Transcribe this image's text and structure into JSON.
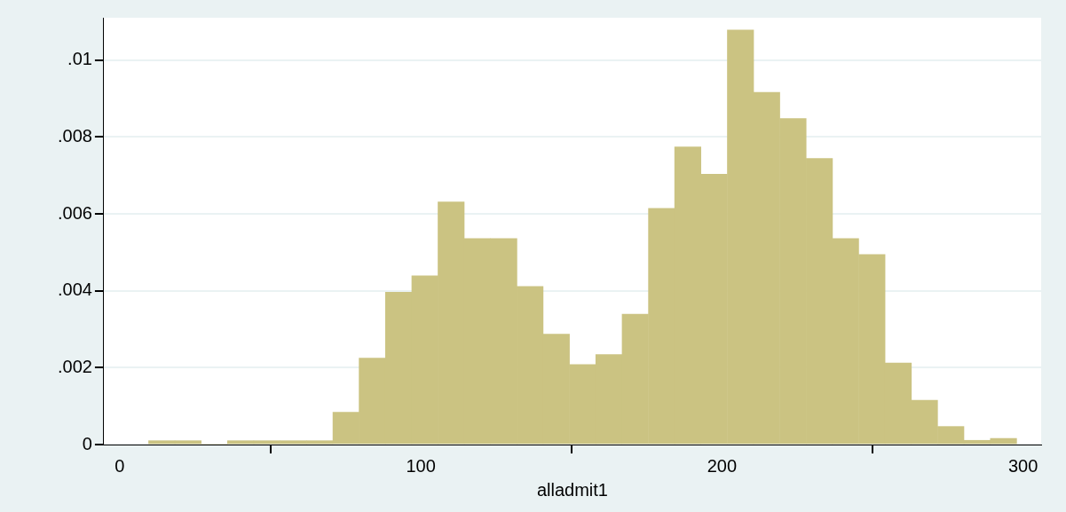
{
  "chart_data": {
    "type": "histogram",
    "xlabel": "alladmit1",
    "bins": [
      9.6,
      18.3,
      27.1,
      35.8,
      44.5,
      53.3,
      62.0,
      70.8,
      79.5,
      88.2,
      97.0,
      105.7,
      114.4,
      123.2,
      131.9,
      140.6,
      149.4,
      158.1,
      166.8,
      175.6,
      184.3,
      193.0,
      201.8,
      210.5,
      219.2,
      228.0,
      236.7,
      245.4,
      254.2,
      262.9,
      271.6,
      280.4,
      289.1,
      297.9
    ],
    "values": [
      0.0001,
      0.0001,
      0,
      0.0001,
      0.0001,
      0.0001,
      0.0001,
      0.00084,
      0.00225,
      0.00396,
      0.00439,
      0.00631,
      0.00536,
      0.00536,
      0.00411,
      0.00287,
      0.00208,
      0.00234,
      0.00339,
      0.00614,
      0.00774,
      0.00703,
      0.01078,
      0.00916,
      0.00848,
      0.00744,
      0.00536,
      0.00494,
      0.00212,
      0.00115,
      0.00047,
      0.00011,
      0.00016
    ],
    "color": "#cbc382",
    "xlim": [
      -5.3,
      306
    ],
    "xticks": [
      0,
      100,
      200,
      300
    ],
    "ylim": [
      0,
      0.0111
    ],
    "yticks": [
      0,
      {
        "value": 0.002,
        "label": ".002"
      },
      {
        "value": 0.004,
        "label": ".004"
      },
      {
        "value": 0.006,
        "label": ".006"
      },
      {
        "value": 0.008,
        "label": ".008"
      },
      {
        "value": 0.01,
        "label": ".01"
      }
    ],
    "grid": "y"
  }
}
